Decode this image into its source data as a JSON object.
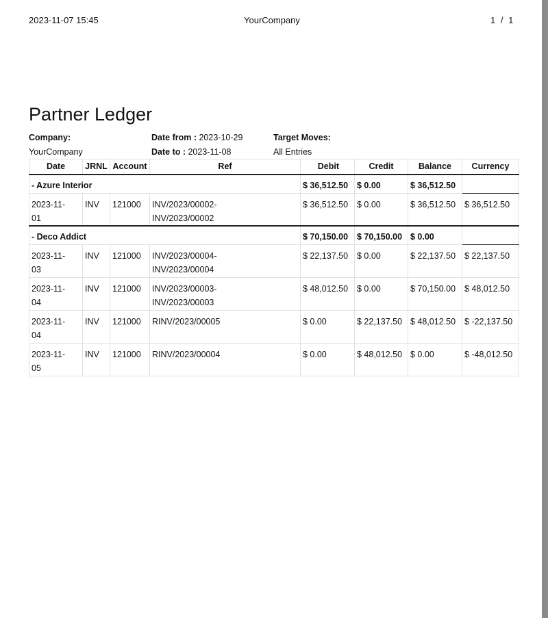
{
  "header": {
    "datetime": "2023-11-07 15:45",
    "company": "YourCompany",
    "page": "1 / 1"
  },
  "title": "Partner Ledger",
  "meta": {
    "company_label": "Company:",
    "company_value": "YourCompany",
    "date_from_label": "Date from :",
    "date_from_value": "2023-10-29",
    "date_to_label": "Date to :",
    "date_to_value": "2023-11-08",
    "target_label": "Target Moves:",
    "target_value": "All Entries"
  },
  "columns": [
    "Date",
    "JRNL",
    "Account",
    "Ref",
    "Debit",
    "Credit",
    "Balance",
    "Currency"
  ],
  "groups": [
    {
      "name": "- Azure Interior",
      "debit": "$ 36,512.50",
      "credit": "$ 0.00",
      "balance": "$ 36,512.50",
      "lines": [
        {
          "date": "2023-11-01",
          "jrnl": "INV",
          "account": "121000",
          "ref": "INV/2023/00002-INV/2023/00002",
          "debit": "$ 36,512.50",
          "credit": "$ 0.00",
          "balance": "$ 36,512.50",
          "currency": "$ 36,512.50"
        }
      ]
    },
    {
      "name": "- Deco Addict",
      "debit": "$ 70,150.00",
      "credit": "$ 70,150.00",
      "balance": "$ 0.00",
      "lines": [
        {
          "date": "2023-11-03",
          "jrnl": "INV",
          "account": "121000",
          "ref": "INV/2023/00004-INV/2023/00004",
          "debit": "$ 22,137.50",
          "credit": "$ 0.00",
          "balance": "$ 22,137.50",
          "currency": "$ 22,137.50"
        },
        {
          "date": "2023-11-04",
          "jrnl": "INV",
          "account": "121000",
          "ref": "INV/2023/00003-INV/2023/00003",
          "debit": "$ 48,012.50",
          "credit": "$ 0.00",
          "balance": "$ 70,150.00",
          "currency": "$ 48,012.50"
        },
        {
          "date": "2023-11-04",
          "jrnl": "INV",
          "account": "121000",
          "ref": "RINV/2023/00005",
          "debit": "$ 0.00",
          "credit": "$ 22,137.50",
          "balance": "$ 48,012.50",
          "currency": "$ -22,137.50"
        },
        {
          "date": "2023-11-05",
          "jrnl": "INV",
          "account": "121000",
          "ref": "RINV/2023/00004",
          "debit": "$ 0.00",
          "credit": "$ 48,012.50",
          "balance": "$ 0.00",
          "currency": "$ -48,012.50"
        }
      ]
    }
  ]
}
